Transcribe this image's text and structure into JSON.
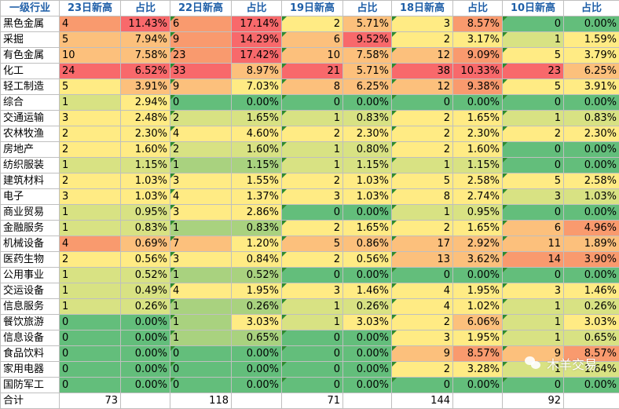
{
  "colors": {
    "green": "#63be7b",
    "lightgreen": "#a9d27f",
    "yellowgreen": "#d8e283",
    "yellow": "#ffeb84",
    "orange": "#fcc07c",
    "salmon": "#f99a6e",
    "red": "#f8696b"
  },
  "headers": [
    "一级行业",
    "23日新高",
    "占比",
    "22日新高",
    "占比",
    "19日新高",
    "占比",
    "18日新高",
    "占比",
    "10日新高",
    "占比"
  ],
  "rows": [
    {
      "name": "黑色金属",
      "cells": [
        [
          "4",
          "salmon"
        ],
        [
          "11.43%",
          "red"
        ],
        [
          "6",
          "salmon"
        ],
        [
          "17.14%",
          "red"
        ],
        [
          "2",
          "yellow"
        ],
        [
          "5.71%",
          "orange"
        ],
        [
          "3",
          "yellow"
        ],
        [
          "8.57%",
          "salmon"
        ],
        [
          "0",
          "green"
        ],
        [
          "0.00%",
          "green"
        ]
      ]
    },
    {
      "name": "采掘",
      "cells": [
        [
          "5",
          "orange"
        ],
        [
          "7.94%",
          "orange"
        ],
        [
          "9",
          "salmon"
        ],
        [
          "14.29%",
          "red"
        ],
        [
          "6",
          "orange"
        ],
        [
          "9.52%",
          "red"
        ],
        [
          "2",
          "yellow"
        ],
        [
          "3.17%",
          "yellow"
        ],
        [
          "1",
          "yellowgreen"
        ],
        [
          "1.59%",
          "yellow"
        ]
      ]
    },
    {
      "name": "有色金属",
      "cells": [
        [
          "10",
          "orange"
        ],
        [
          "7.58%",
          "orange"
        ],
        [
          "23",
          "salmon"
        ],
        [
          "17.42%",
          "red"
        ],
        [
          "10",
          "orange"
        ],
        [
          "7.58%",
          "orange"
        ],
        [
          "12",
          "orange"
        ],
        [
          "9.09%",
          "salmon"
        ],
        [
          "5",
          "yellow"
        ],
        [
          "3.79%",
          "yellow"
        ]
      ]
    },
    {
      "name": "化工",
      "cells": [
        [
          "24",
          "red"
        ],
        [
          "6.52%",
          "red"
        ],
        [
          "33",
          "red"
        ],
        [
          "8.97%",
          "orange"
        ],
        [
          "21",
          "red"
        ],
        [
          "5.71%",
          "orange"
        ],
        [
          "38",
          "red"
        ],
        [
          "10.33%",
          "red"
        ],
        [
          "23",
          "red"
        ],
        [
          "6.25%",
          "orange"
        ]
      ]
    },
    {
      "name": "轻工制造",
      "cells": [
        [
          "5",
          "yellow"
        ],
        [
          "3.91%",
          "orange"
        ],
        [
          "9",
          "orange"
        ],
        [
          "7.03%",
          "yellow"
        ],
        [
          "8",
          "orange"
        ],
        [
          "6.25%",
          "orange"
        ],
        [
          "12",
          "orange"
        ],
        [
          "9.38%",
          "salmon"
        ],
        [
          "5",
          "yellow"
        ],
        [
          "3.91%",
          "yellow"
        ]
      ]
    },
    {
      "name": "综合",
      "cells": [
        [
          "1",
          "yellowgreen"
        ],
        [
          "2.94%",
          "yellow"
        ],
        [
          "0",
          "green"
        ],
        [
          "0.00%",
          "green"
        ],
        [
          "0",
          "green"
        ],
        [
          "0.00%",
          "green"
        ],
        [
          "0",
          "green"
        ],
        [
          "0.00%",
          "green"
        ],
        [
          "0",
          "green"
        ],
        [
          "0.00%",
          "green"
        ]
      ]
    },
    {
      "name": "交通运输",
      "cells": [
        [
          "3",
          "yellow"
        ],
        [
          "2.48%",
          "yellow"
        ],
        [
          "2",
          "yellowgreen"
        ],
        [
          "1.65%",
          "yellowgreen"
        ],
        [
          "1",
          "yellowgreen"
        ],
        [
          "0.83%",
          "yellowgreen"
        ],
        [
          "2",
          "yellow"
        ],
        [
          "1.65%",
          "yellow"
        ],
        [
          "1",
          "yellowgreen"
        ],
        [
          "0.83%",
          "yellowgreen"
        ]
      ]
    },
    {
      "name": "农林牧渔",
      "cells": [
        [
          "2",
          "yellow"
        ],
        [
          "2.30%",
          "yellow"
        ],
        [
          "4",
          "yellow"
        ],
        [
          "4.60%",
          "yellow"
        ],
        [
          "2",
          "yellow"
        ],
        [
          "2.30%",
          "yellow"
        ],
        [
          "2",
          "yellow"
        ],
        [
          "2.30%",
          "yellow"
        ],
        [
          "2",
          "yellow"
        ],
        [
          "2.30%",
          "yellow"
        ]
      ]
    },
    {
      "name": "房地产",
      "cells": [
        [
          "2",
          "yellow"
        ],
        [
          "1.60%",
          "yellow"
        ],
        [
          "2",
          "yellowgreen"
        ],
        [
          "1.60%",
          "yellowgreen"
        ],
        [
          "1",
          "yellowgreen"
        ],
        [
          "0.80%",
          "yellowgreen"
        ],
        [
          "2",
          "yellow"
        ],
        [
          "1.60%",
          "yellow"
        ],
        [
          "0",
          "green"
        ],
        [
          "0.00%",
          "green"
        ]
      ]
    },
    {
      "name": "纺织服装",
      "cells": [
        [
          "1",
          "yellowgreen"
        ],
        [
          "1.15%",
          "yellowgreen"
        ],
        [
          "1",
          "lightgreen"
        ],
        [
          "1.15%",
          "lightgreen"
        ],
        [
          "1",
          "yellowgreen"
        ],
        [
          "1.15%",
          "yellowgreen"
        ],
        [
          "1",
          "yellowgreen"
        ],
        [
          "1.15%",
          "yellowgreen"
        ],
        [
          "0",
          "green"
        ],
        [
          "0.00%",
          "green"
        ]
      ]
    },
    {
      "name": "建筑材料",
      "cells": [
        [
          "2",
          "yellow"
        ],
        [
          "1.03%",
          "yellow"
        ],
        [
          "3",
          "yellow"
        ],
        [
          "1.55%",
          "yellow"
        ],
        [
          "2",
          "yellow"
        ],
        [
          "1.03%",
          "yellow"
        ],
        [
          "5",
          "yellow"
        ],
        [
          "2.58%",
          "yellow"
        ],
        [
          "5",
          "yellow"
        ],
        [
          "2.58%",
          "yellow"
        ]
      ]
    },
    {
      "name": "电子",
      "cells": [
        [
          "3",
          "yellow"
        ],
        [
          "1.03%",
          "yellow"
        ],
        [
          "4",
          "yellow"
        ],
        [
          "1.37%",
          "yellow"
        ],
        [
          "3",
          "yellow"
        ],
        [
          "1.03%",
          "yellow"
        ],
        [
          "8",
          "yellow"
        ],
        [
          "2.74%",
          "yellow"
        ],
        [
          "3",
          "yellowgreen"
        ],
        [
          "1.03%",
          "yellowgreen"
        ]
      ]
    },
    {
      "name": "商业贸易",
      "cells": [
        [
          "1",
          "yellowgreen"
        ],
        [
          "0.95%",
          "yellowgreen"
        ],
        [
          "3",
          "yellow"
        ],
        [
          "2.86%",
          "yellow"
        ],
        [
          "0",
          "green"
        ],
        [
          "0.00%",
          "green"
        ],
        [
          "1",
          "yellowgreen"
        ],
        [
          "0.95%",
          "yellowgreen"
        ],
        [
          "0",
          "green"
        ],
        [
          "0.00%",
          "green"
        ]
      ]
    },
    {
      "name": "金融服务",
      "cells": [
        [
          "1",
          "yellowgreen"
        ],
        [
          "0.83%",
          "yellowgreen"
        ],
        [
          "1",
          "lightgreen"
        ],
        [
          "0.83%",
          "lightgreen"
        ],
        [
          "2",
          "yellow"
        ],
        [
          "1.65%",
          "yellow"
        ],
        [
          "2",
          "yellow"
        ],
        [
          "1.65%",
          "yellow"
        ],
        [
          "6",
          "orange"
        ],
        [
          "4.96%",
          "salmon"
        ]
      ]
    },
    {
      "name": "机械设备",
      "cells": [
        [
          "4",
          "salmon"
        ],
        [
          "0.69%",
          "orange"
        ],
        [
          "7",
          "orange"
        ],
        [
          "1.20%",
          "yellow"
        ],
        [
          "5",
          "orange"
        ],
        [
          "0.86%",
          "orange"
        ],
        [
          "17",
          "orange"
        ],
        [
          "2.92%",
          "orange"
        ],
        [
          "11",
          "orange"
        ],
        [
          "1.89%",
          "orange"
        ]
      ]
    },
    {
      "name": "医药生物",
      "cells": [
        [
          "2",
          "yellow"
        ],
        [
          "0.56%",
          "yellow"
        ],
        [
          "3",
          "yellow"
        ],
        [
          "0.84%",
          "yellow"
        ],
        [
          "2",
          "yellow"
        ],
        [
          "0.56%",
          "yellow"
        ],
        [
          "13",
          "orange"
        ],
        [
          "3.62%",
          "orange"
        ],
        [
          "14",
          "salmon"
        ],
        [
          "3.90%",
          "salmon"
        ]
      ]
    },
    {
      "name": "公用事业",
      "cells": [
        [
          "1",
          "yellowgreen"
        ],
        [
          "0.52%",
          "yellowgreen"
        ],
        [
          "1",
          "lightgreen"
        ],
        [
          "0.52%",
          "lightgreen"
        ],
        [
          "0",
          "green"
        ],
        [
          "0.00%",
          "green"
        ],
        [
          "0",
          "green"
        ],
        [
          "0.00%",
          "green"
        ],
        [
          "0",
          "green"
        ],
        [
          "0.00%",
          "green"
        ]
      ]
    },
    {
      "name": "交运设备",
      "cells": [
        [
          "1",
          "yellowgreen"
        ],
        [
          "0.49%",
          "yellowgreen"
        ],
        [
          "4",
          "yellow"
        ],
        [
          "1.95%",
          "yellow"
        ],
        [
          "3",
          "yellow"
        ],
        [
          "1.46%",
          "yellow"
        ],
        [
          "4",
          "yellow"
        ],
        [
          "1.95%",
          "yellow"
        ],
        [
          "3",
          "yellow"
        ],
        [
          "1.46%",
          "yellow"
        ]
      ]
    },
    {
      "name": "信息服务",
      "cells": [
        [
          "1",
          "yellowgreen"
        ],
        [
          "0.26%",
          "yellowgreen"
        ],
        [
          "1",
          "lightgreen"
        ],
        [
          "0.26%",
          "lightgreen"
        ],
        [
          "1",
          "yellowgreen"
        ],
        [
          "0.26%",
          "yellowgreen"
        ],
        [
          "4",
          "yellow"
        ],
        [
          "1.02%",
          "yellow"
        ],
        [
          "1",
          "yellowgreen"
        ],
        [
          "0.26%",
          "yellowgreen"
        ]
      ]
    },
    {
      "name": "餐饮旅游",
      "cells": [
        [
          "0",
          "green"
        ],
        [
          "0.00%",
          "green"
        ],
        [
          "1",
          "lightgreen"
        ],
        [
          "3.03%",
          "yellow"
        ],
        [
          "1",
          "yellowgreen"
        ],
        [
          "3.03%",
          "yellow"
        ],
        [
          "2",
          "yellow"
        ],
        [
          "6.06%",
          "orange"
        ],
        [
          "1",
          "yellowgreen"
        ],
        [
          "3.03%",
          "yellow"
        ]
      ]
    },
    {
      "name": "信息设备",
      "cells": [
        [
          "0",
          "green"
        ],
        [
          "0.00%",
          "green"
        ],
        [
          "1",
          "lightgreen"
        ],
        [
          "0.65%",
          "lightgreen"
        ],
        [
          "0",
          "green"
        ],
        [
          "0.00%",
          "green"
        ],
        [
          "3",
          "yellow"
        ],
        [
          "1.95%",
          "yellow"
        ],
        [
          "1",
          "yellowgreen"
        ],
        [
          "0.65%",
          "yellowgreen"
        ]
      ]
    },
    {
      "name": "食品饮料",
      "cells": [
        [
          "0",
          "green"
        ],
        [
          "0.00%",
          "green"
        ],
        [
          "0",
          "green"
        ],
        [
          "0.00%",
          "green"
        ],
        [
          "0",
          "green"
        ],
        [
          "0.00%",
          "green"
        ],
        [
          "9",
          "orange"
        ],
        [
          "8.57%",
          "salmon"
        ],
        [
          "9",
          "orange"
        ],
        [
          "8.57%",
          "salmon"
        ]
      ]
    },
    {
      "name": "家用电器",
      "cells": [
        [
          "0",
          "green"
        ],
        [
          "0.00%",
          "green"
        ],
        [
          "0",
          "green"
        ],
        [
          "0.00%",
          "green"
        ],
        [
          "0",
          "green"
        ],
        [
          "0.00%",
          "green"
        ],
        [
          "2",
          "yellow"
        ],
        [
          "3.28%",
          "yellow"
        ],
        [
          "1",
          "yellowgreen"
        ],
        [
          "1.64%",
          "yellowgreen"
        ]
      ]
    },
    {
      "name": "国防军工",
      "cells": [
        [
          "0",
          "green"
        ],
        [
          "0.00%",
          "green"
        ],
        [
          "0",
          "green"
        ],
        [
          "0.00%",
          "green"
        ],
        [
          "0",
          "green"
        ],
        [
          "0.00%",
          "green"
        ],
        [
          "0",
          "green"
        ],
        [
          "0.00%",
          "green"
        ],
        [
          "0",
          "green"
        ],
        [
          "0.00%",
          "green"
        ]
      ]
    }
  ],
  "total": {
    "label": "合计",
    "values": [
      "73",
      "118",
      "71",
      "144",
      "92"
    ]
  },
  "watermark": "木羊交易"
}
